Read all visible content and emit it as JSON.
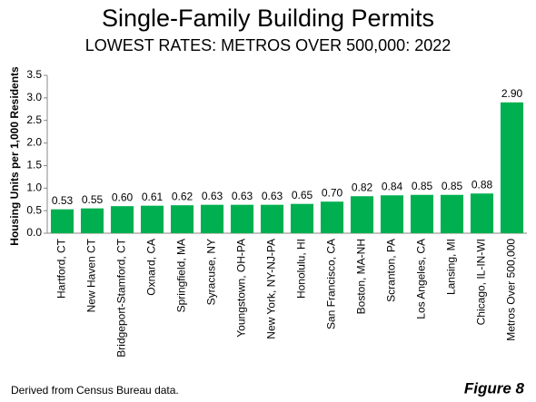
{
  "chart_data": {
    "type": "bar",
    "title": "Single-Family Building Permits",
    "subtitle": "LOWEST RATES: METROS OVER 500,000: 2022",
    "y_label": "Housing Units per 1,000 Residents",
    "categories": [
      "Hartford, CT",
      "New Haven CT",
      "Bridgeport-Stamford, CT",
      "Oxnard, CA",
      "Springfield, MA",
      "Syracuse, NY",
      "Youngstown, OH-PA",
      "New York, NY-NJ-PA",
      "Honolulu, HI",
      "San Francisco, CA",
      "Boston, MA-NH",
      "Scranton, PA",
      "Los Angeles, CA",
      "Lansing, MI",
      "Chicago, IL-IN-WI",
      "Metros Over 500,000"
    ],
    "values": [
      0.53,
      0.55,
      0.6,
      0.61,
      0.62,
      0.63,
      0.63,
      0.63,
      0.65,
      0.7,
      0.82,
      0.84,
      0.85,
      0.85,
      0.88,
      2.9
    ],
    "value_labels": [
      "0.53",
      "0.55",
      "0.60",
      "0.61",
      "0.62",
      "0.63",
      "0.63",
      "0.63",
      "0.65",
      "0.70",
      "0.82",
      "0.84",
      "0.85",
      "0.85",
      "0.88",
      "2.90"
    ],
    "color": "#00b050",
    "ylim": [
      0,
      3.5
    ],
    "yticks": [
      {
        "value": 0,
        "label": "0.0"
      },
      0.5,
      {
        "value": 1,
        "label": "1.0"
      },
      1.5,
      {
        "value": 2,
        "label": "2.0"
      },
      2.5,
      {
        "value": 3,
        "label": "3.0"
      },
      3.5
    ],
    "grid": false,
    "source": "Derived from Census Bureau data.",
    "figure_label": "Figure 8"
  }
}
